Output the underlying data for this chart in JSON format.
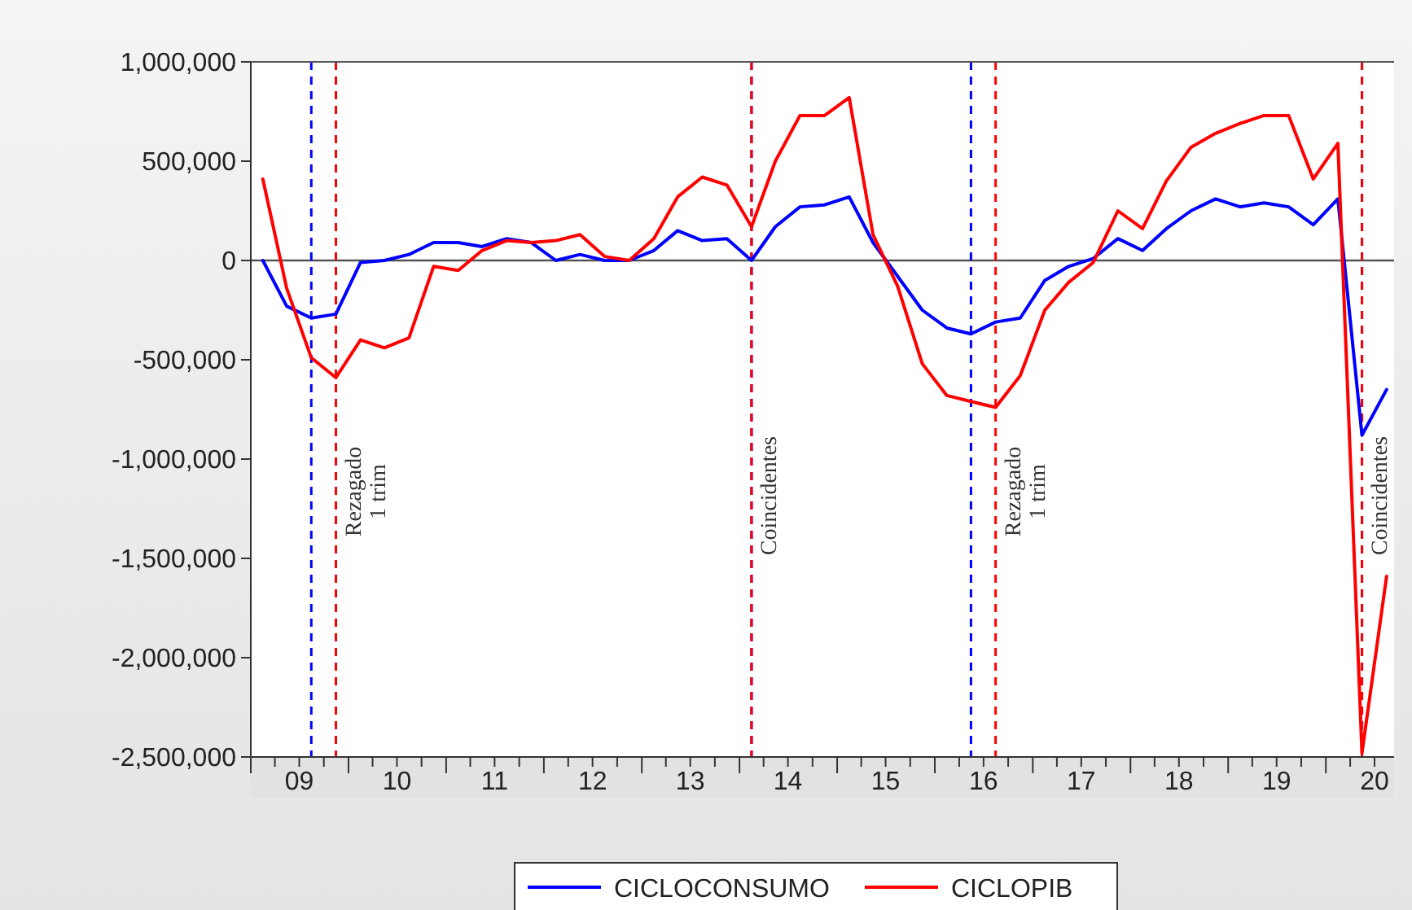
{
  "chart_data": {
    "type": "line",
    "xlim": [
      "2009-01-01",
      "2020-09-12"
    ],
    "ylim": [
      -2500000,
      1000000
    ],
    "yticks": [
      {
        "value": 1000000,
        "label": "1,000,000"
      },
      {
        "value": 500000,
        "label": "500,000"
      },
      0,
      {
        "value": -500000,
        "label": "-500,000"
      },
      {
        "value": -1000000,
        "label": "-1,000,000"
      },
      {
        "value": -1500000,
        "label": "-1,500,000"
      },
      {
        "value": -2000000,
        "label": "-2,000,000"
      },
      {
        "value": -2500000,
        "label": "-2,500,000"
      }
    ],
    "xticks": [
      {
        "value": "2009-01-01",
        "label": null
      },
      {
        "value": "2009-04-01",
        "label": null
      },
      {
        "value": "2009-07-01",
        "label": "09"
      },
      {
        "value": "2009-10-01",
        "label": null
      },
      {
        "value": "2010-01-01",
        "label": null
      },
      {
        "value": "2010-04-01",
        "label": null
      },
      {
        "value": "2010-07-01",
        "label": "10"
      },
      {
        "value": "2010-10-01",
        "label": null
      },
      {
        "value": "2011-01-01",
        "label": null
      },
      {
        "value": "2011-04-01",
        "label": null
      },
      {
        "value": "2011-07-01",
        "label": "11"
      },
      {
        "value": "2011-10-01",
        "label": null
      },
      {
        "value": "2012-01-01",
        "label": null
      },
      {
        "value": "2012-04-01",
        "label": null
      },
      {
        "value": "2012-07-01",
        "label": "12"
      },
      {
        "value": "2012-10-01",
        "label": null
      },
      {
        "value": "2013-01-01",
        "label": null
      },
      {
        "value": "2013-04-01",
        "label": null
      },
      {
        "value": "2013-07-01",
        "label": "13"
      },
      {
        "value": "2013-10-01",
        "label": null
      },
      {
        "value": "2014-01-01",
        "label": null
      },
      {
        "value": "2014-04-01",
        "label": null
      },
      {
        "value": "2014-07-01",
        "label": "14"
      },
      {
        "value": "2014-10-01",
        "label": null
      },
      {
        "value": "2015-01-01",
        "label": null
      },
      {
        "value": "2015-04-01",
        "label": null
      },
      {
        "value": "2015-07-01",
        "label": "15"
      },
      {
        "value": "2015-10-01",
        "label": null
      },
      {
        "value": "2016-01-01",
        "label": null
      },
      {
        "value": "2016-04-01",
        "label": null
      },
      {
        "value": "2016-07-01",
        "label": "16"
      },
      {
        "value": "2016-10-01",
        "label": null
      },
      {
        "value": "2017-01-01",
        "label": null
      },
      {
        "value": "2017-04-01",
        "label": null
      },
      {
        "value": "2017-07-01",
        "label": "17"
      },
      {
        "value": "2017-10-01",
        "label": null
      },
      {
        "value": "2018-01-01",
        "label": null
      },
      {
        "value": "2018-04-01",
        "label": null
      },
      {
        "value": "2018-07-01",
        "label": "18"
      },
      {
        "value": "2018-10-01",
        "label": null
      },
      {
        "value": "2019-01-01",
        "label": null
      },
      {
        "value": "2019-04-01",
        "label": null
      },
      {
        "value": "2019-07-01",
        "label": "19"
      },
      {
        "value": "2019-10-01",
        "label": null
      },
      {
        "value": "2020-01-01",
        "label": null
      },
      {
        "value": "2020-04-01",
        "label": null
      },
      {
        "value": "2020-07-01",
        "label": "20"
      }
    ],
    "x": [
      "2009-02-15",
      "2009-05-15",
      "2009-08-15",
      "2009-11-15",
      "2010-02-15",
      "2010-05-15",
      "2010-08-15",
      "2010-11-15",
      "2011-02-15",
      "2011-05-15",
      "2011-08-15",
      "2011-11-15",
      "2012-02-15",
      "2012-05-15",
      "2012-08-15",
      "2012-11-15",
      "2013-02-15",
      "2013-05-15",
      "2013-08-15",
      "2013-11-15",
      "2014-02-15",
      "2014-05-15",
      "2014-08-15",
      "2014-11-15",
      "2015-02-15",
      "2015-05-15",
      "2015-08-15",
      "2015-11-15",
      "2016-02-15",
      "2016-05-15",
      "2016-08-15",
      "2016-11-15",
      "2017-02-15",
      "2017-05-15",
      "2017-08-15",
      "2017-11-15",
      "2018-02-15",
      "2018-05-15",
      "2018-08-15",
      "2018-11-15",
      "2019-02-15",
      "2019-05-15",
      "2019-08-15",
      "2019-11-15",
      "2020-02-15",
      "2020-05-15",
      "2020-08-15"
    ],
    "series": [
      {
        "name": "CICLOCONSUMO",
        "color": "#0000ff",
        "values": [
          0,
          -230000,
          -290000,
          -270000,
          -10000,
          0,
          30000,
          90000,
          90000,
          70000,
          110000,
          90000,
          0,
          30000,
          0,
          0,
          50000,
          150000,
          100000,
          110000,
          0,
          170000,
          270000,
          280000,
          320000,
          90000,
          -80000,
          -250000,
          -340000,
          -370000,
          -310000,
          -290000,
          -100000,
          -30000,
          10000,
          110000,
          50000,
          160000,
          250000,
          310000,
          270000,
          290000,
          270000,
          180000,
          310000,
          -880000,
          -650000
        ]
      },
      {
        "name": "CICLOPIB",
        "color": "#ff0000",
        "values": [
          410000,
          -140000,
          -490000,
          -590000,
          -400000,
          -440000,
          -390000,
          -30000,
          -50000,
          50000,
          100000,
          90000,
          100000,
          130000,
          20000,
          0,
          110000,
          320000,
          420000,
          380000,
          170000,
          500000,
          730000,
          730000,
          820000,
          130000,
          -130000,
          -520000,
          -680000,
          -710000,
          -740000,
          -580000,
          -250000,
          -110000,
          -10000,
          250000,
          160000,
          400000,
          570000,
          640000,
          690000,
          730000,
          730000,
          410000,
          590000,
          -2480000,
          -1590000
        ]
      }
    ],
    "ref_lines": [
      {
        "axis": "y",
        "value": 0,
        "color": "#555555",
        "line_style": "solid"
      },
      {
        "axis": "x",
        "value": "2009-08-15",
        "color": "#0000ff",
        "line_style": "dashed"
      },
      {
        "axis": "x",
        "value": "2009-11-15",
        "color": "#ff0000",
        "line_style": "dashed",
        "label": "Rezagado\n1 trim"
      },
      {
        "axis": "x",
        "value": "2014-02-15",
        "color": "#0000ff",
        "line_style": "dashed"
      },
      {
        "axis": "x",
        "value": "2014-02-15",
        "color": "#ff0000",
        "line_style": "dashed",
        "label": "Coincidentes"
      },
      {
        "axis": "x",
        "value": "2016-05-15",
        "color": "#0000ff",
        "line_style": "dashed"
      },
      {
        "axis": "x",
        "value": "2016-08-15",
        "color": "#ff0000",
        "line_style": "dashed",
        "label": "Rezagado\n1 trim"
      },
      {
        "axis": "x",
        "value": "2020-05-15",
        "color": "#0000ff",
        "line_style": "dashed"
      },
      {
        "axis": "x",
        "value": "2020-05-15",
        "color": "#ff0000",
        "line_style": "dashed",
        "label": "Coincidentes"
      }
    ],
    "legend": "bottom",
    "grid": false,
    "line_style": "solid",
    "marker": "none"
  }
}
